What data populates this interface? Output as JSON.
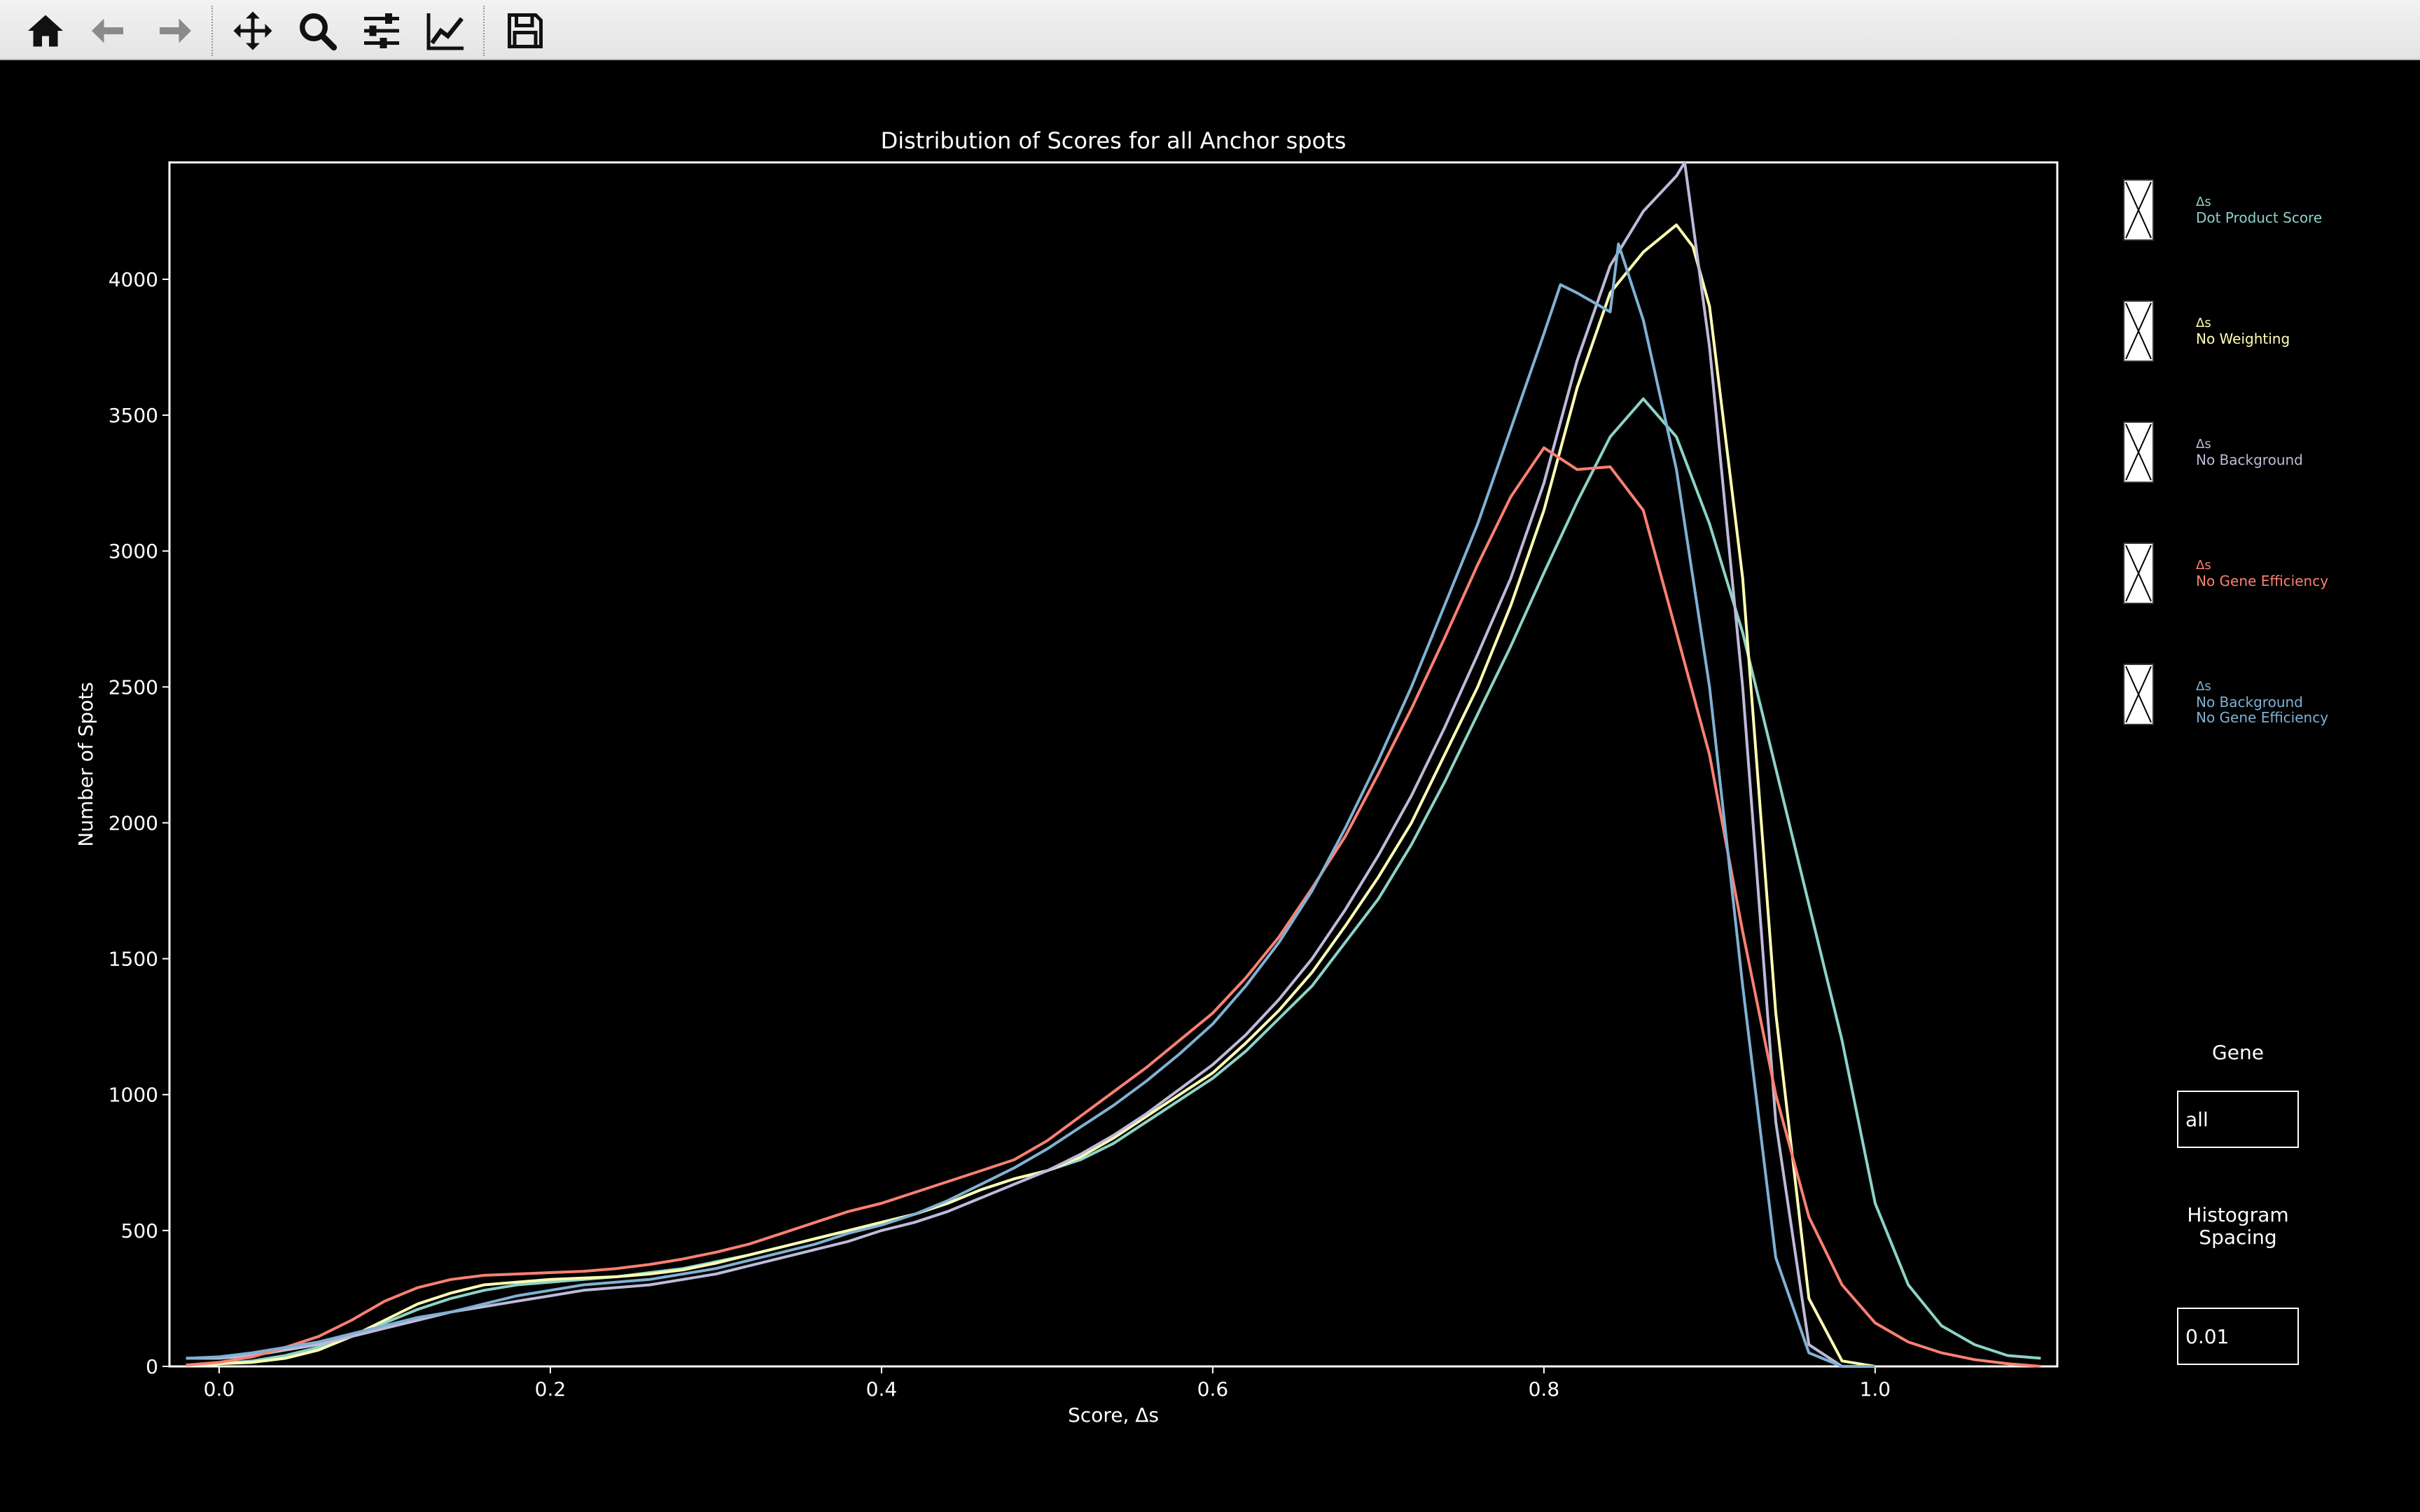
{
  "toolbar": {
    "buttons": [
      {
        "name": "home-button",
        "icon": "home-icon"
      },
      {
        "name": "back-button",
        "icon": "arrow-left-icon"
      },
      {
        "name": "forward-button",
        "icon": "arrow-right-icon"
      },
      {
        "name": "pan-button",
        "icon": "move-icon"
      },
      {
        "name": "zoom-button",
        "icon": "magnifier-icon"
      },
      {
        "name": "configure-subplots-button",
        "icon": "sliders-icon"
      },
      {
        "name": "edit-axes-button",
        "icon": "line-chart-icon"
      },
      {
        "name": "save-button",
        "icon": "floppy-disk-icon"
      }
    ]
  },
  "chart_data": {
    "type": "line",
    "title": "Distribution of Scores for all Anchor spots",
    "xlabel": "Score, Δs",
    "ylabel": "Number of Spots",
    "xlim": [
      -0.03,
      1.11
    ],
    "ylim": [
      0,
      4430
    ],
    "xticks": [
      0.0,
      0.2,
      0.4,
      0.6,
      0.8,
      1.0
    ],
    "xtick_labels": [
      "0.0",
      "0.2",
      "0.4",
      "0.6",
      "0.8",
      "1.0"
    ],
    "yticks": [
      0,
      500,
      1000,
      1500,
      2000,
      2500,
      3000,
      3500,
      4000
    ],
    "ytick_labels": [
      "0",
      "500",
      "1000",
      "1500",
      "2000",
      "2500",
      "3000",
      "3500",
      "4000"
    ],
    "grid": false,
    "background": "#000000",
    "series": [
      {
        "name": "Dot Product Score",
        "color": "#8dd3c7",
        "x": [
          -0.02,
          0.0,
          0.02,
          0.04,
          0.06,
          0.08,
          0.1,
          0.12,
          0.14,
          0.16,
          0.18,
          0.2,
          0.22,
          0.24,
          0.26,
          0.28,
          0.3,
          0.32,
          0.34,
          0.36,
          0.38,
          0.4,
          0.42,
          0.44,
          0.46,
          0.48,
          0.5,
          0.52,
          0.54,
          0.56,
          0.58,
          0.6,
          0.62,
          0.64,
          0.66,
          0.68,
          0.7,
          0.72,
          0.74,
          0.76,
          0.78,
          0.8,
          0.82,
          0.84,
          0.86,
          0.88,
          0.9,
          0.92,
          0.94,
          0.96,
          0.98,
          1.0,
          1.02,
          1.04,
          1.06,
          1.08,
          1.1
        ],
        "y": [
          5,
          10,
          20,
          40,
          70,
          110,
          160,
          210,
          250,
          280,
          300,
          310,
          320,
          330,
          345,
          360,
          385,
          410,
          440,
          470,
          500,
          530,
          560,
          600,
          650,
          690,
          720,
          760,
          820,
          900,
          980,
          1060,
          1160,
          1280,
          1400,
          1560,
          1720,
          1920,
          2150,
          2400,
          2650,
          2920,
          3180,
          3420,
          3560,
          3420,
          3100,
          2700,
          2200,
          1700,
          1200,
          600,
          300,
          150,
          80,
          40,
          30
        ]
      },
      {
        "name": "No Weighting",
        "color": "#ffffb3",
        "x": [
          -0.02,
          0.0,
          0.02,
          0.04,
          0.06,
          0.08,
          0.1,
          0.12,
          0.14,
          0.16,
          0.18,
          0.2,
          0.22,
          0.24,
          0.26,
          0.28,
          0.3,
          0.32,
          0.34,
          0.36,
          0.38,
          0.4,
          0.42,
          0.44,
          0.46,
          0.48,
          0.5,
          0.52,
          0.54,
          0.56,
          0.58,
          0.6,
          0.62,
          0.64,
          0.66,
          0.68,
          0.7,
          0.72,
          0.74,
          0.76,
          0.78,
          0.8,
          0.82,
          0.84,
          0.86,
          0.88,
          0.89,
          0.9,
          0.92,
          0.94,
          0.96,
          0.98,
          1.0
        ],
        "y": [
          5,
          10,
          15,
          30,
          60,
          110,
          170,
          230,
          270,
          300,
          310,
          320,
          325,
          330,
          340,
          355,
          380,
          410,
          440,
          470,
          500,
          530,
          560,
          600,
          650,
          690,
          720,
          770,
          840,
          920,
          1000,
          1080,
          1190,
          1310,
          1450,
          1620,
          1800,
          2000,
          2250,
          2500,
          2800,
          3150,
          3600,
          3950,
          4100,
          4200,
          4120,
          3900,
          2900,
          1300,
          250,
          20,
          0
        ]
      },
      {
        "name": "No Background",
        "color": "#bebada",
        "x": [
          -0.02,
          0.0,
          0.02,
          0.04,
          0.06,
          0.08,
          0.1,
          0.12,
          0.14,
          0.16,
          0.18,
          0.2,
          0.22,
          0.24,
          0.26,
          0.28,
          0.3,
          0.32,
          0.34,
          0.36,
          0.38,
          0.4,
          0.42,
          0.44,
          0.46,
          0.48,
          0.5,
          0.52,
          0.54,
          0.56,
          0.58,
          0.6,
          0.62,
          0.64,
          0.66,
          0.68,
          0.7,
          0.72,
          0.74,
          0.76,
          0.78,
          0.8,
          0.82,
          0.84,
          0.86,
          0.88,
          0.885,
          0.9,
          0.92,
          0.94,
          0.96,
          0.98,
          1.0
        ],
        "y": [
          30,
          30,
          40,
          60,
          80,
          110,
          140,
          170,
          200,
          220,
          240,
          260,
          280,
          290,
          300,
          320,
          340,
          370,
          400,
          430,
          460,
          500,
          530,
          570,
          620,
          670,
          720,
          780,
          850,
          930,
          1020,
          1110,
          1220,
          1350,
          1500,
          1680,
          1880,
          2100,
          2350,
          2620,
          2900,
          3250,
          3700,
          4050,
          4250,
          4380,
          4430,
          3750,
          2500,
          900,
          80,
          0,
          0
        ]
      },
      {
        "name": "No Gene Efficiency",
        "color": "#fb8072",
        "x": [
          -0.02,
          0.0,
          0.02,
          0.04,
          0.06,
          0.08,
          0.1,
          0.12,
          0.14,
          0.16,
          0.18,
          0.2,
          0.22,
          0.24,
          0.26,
          0.28,
          0.3,
          0.32,
          0.34,
          0.36,
          0.38,
          0.4,
          0.42,
          0.44,
          0.46,
          0.48,
          0.5,
          0.52,
          0.54,
          0.56,
          0.58,
          0.6,
          0.62,
          0.64,
          0.66,
          0.68,
          0.7,
          0.72,
          0.74,
          0.76,
          0.78,
          0.8,
          0.82,
          0.84,
          0.86,
          0.88,
          0.9,
          0.92,
          0.94,
          0.96,
          0.98,
          1.0,
          1.02,
          1.04,
          1.06,
          1.08,
          1.1
        ],
        "y": [
          5,
          15,
          35,
          70,
          110,
          170,
          240,
          290,
          320,
          335,
          340,
          345,
          350,
          360,
          375,
          395,
          420,
          450,
          490,
          530,
          570,
          600,
          640,
          680,
          720,
          760,
          830,
          920,
          1010,
          1100,
          1200,
          1300,
          1430,
          1580,
          1760,
          1950,
          2180,
          2420,
          2680,
          2950,
          3200,
          3380,
          3300,
          3310,
          3150,
          2700,
          2250,
          1600,
          1000,
          550,
          300,
          160,
          90,
          50,
          25,
          10,
          0
        ]
      },
      {
        "name": "No Background\nNo Gene Efficiency",
        "color": "#80b1d3",
        "x": [
          -0.02,
          0.0,
          0.02,
          0.04,
          0.06,
          0.08,
          0.1,
          0.12,
          0.14,
          0.16,
          0.18,
          0.2,
          0.22,
          0.24,
          0.26,
          0.28,
          0.3,
          0.32,
          0.34,
          0.36,
          0.38,
          0.4,
          0.42,
          0.44,
          0.46,
          0.48,
          0.5,
          0.52,
          0.54,
          0.56,
          0.58,
          0.6,
          0.62,
          0.64,
          0.66,
          0.68,
          0.7,
          0.72,
          0.74,
          0.76,
          0.78,
          0.8,
          0.81,
          0.82,
          0.84,
          0.845,
          0.86,
          0.88,
          0.9,
          0.92,
          0.94,
          0.96,
          0.98,
          1.0
        ],
        "y": [
          30,
          35,
          50,
          70,
          90,
          120,
          150,
          180,
          200,
          230,
          260,
          280,
          300,
          310,
          320,
          340,
          360,
          390,
          420,
          450,
          490,
          520,
          560,
          610,
          670,
          730,
          800,
          880,
          960,
          1050,
          1150,
          1260,
          1400,
          1560,
          1750,
          1980,
          2230,
          2500,
          2800,
          3100,
          3450,
          3800,
          3980,
          3950,
          3880,
          4130,
          3850,
          3300,
          2500,
          1400,
          400,
          50,
          0,
          0
        ]
      }
    ],
    "legend": "right",
    "legend_checkbox_symbol": "Δs",
    "legend_entries": [
      {
        "lines": [
          "Dot Product Score"
        ],
        "color": "#8dd3c7",
        "checked": true
      },
      {
        "lines": [
          "No Weighting"
        ],
        "color": "#ffffb3",
        "checked": true
      },
      {
        "lines": [
          "No Background"
        ],
        "color": "#bebada",
        "checked": true
      },
      {
        "lines": [
          "No Gene Efficiency"
        ],
        "color": "#fb8072",
        "checked": true
      },
      {
        "lines": [
          "No Background",
          "No Gene Efficiency"
        ],
        "color": "#80b1d3",
        "checked": true
      }
    ]
  },
  "widgets": {
    "gene_title": "Gene",
    "gene_value": "all",
    "spacing_title_line1": "Histogram",
    "spacing_title_line2": "Spacing",
    "spacing_value": "0.01"
  }
}
